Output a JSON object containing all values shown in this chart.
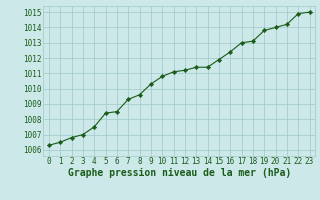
{
  "x": [
    0,
    1,
    2,
    3,
    4,
    5,
    6,
    7,
    8,
    9,
    10,
    11,
    12,
    13,
    14,
    15,
    16,
    17,
    18,
    19,
    20,
    21,
    22,
    23
  ],
  "y": [
    1006.3,
    1006.5,
    1006.8,
    1007.0,
    1007.5,
    1008.4,
    1008.5,
    1009.3,
    1009.6,
    1010.3,
    1010.8,
    1011.1,
    1011.2,
    1011.4,
    1011.4,
    1011.9,
    1012.4,
    1013.0,
    1013.1,
    1013.8,
    1014.0,
    1014.2,
    1014.9,
    1015.0
  ],
  "line_color": "#1a5c1a",
  "marker": "D",
  "marker_size": 2.2,
  "bg_color": "#cce8e8",
  "grid_color": "#9ec8c8",
  "ylabel_ticks": [
    1006,
    1007,
    1008,
    1009,
    1010,
    1011,
    1012,
    1013,
    1014,
    1015
  ],
  "xlabel": "Graphe pression niveau de la mer (hPa)",
  "ylim": [
    1005.6,
    1015.4
  ],
  "xlim": [
    -0.5,
    23.5
  ],
  "tick_color": "#1a5c1a",
  "label_fontsize": 5.5,
  "xlabel_fontsize": 7.0
}
